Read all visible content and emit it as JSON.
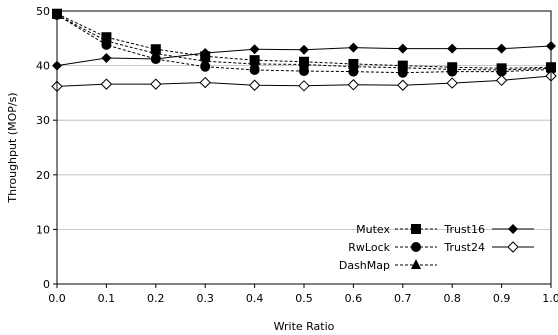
{
  "chart_data": {
    "type": "line",
    "xlabel": "Write Ratio",
    "ylabel": "Throughput (MOP/s)",
    "xlim": [
      0.0,
      1.0
    ],
    "ylim": [
      0,
      50
    ],
    "xticks": [
      "0.0",
      "0.1",
      "0.2",
      "0.3",
      "0.4",
      "0.5",
      "0.6",
      "0.7",
      "0.8",
      "0.9",
      "1.0"
    ],
    "yticks": [
      "0",
      "10",
      "20",
      "30",
      "40",
      "50"
    ],
    "x": [
      0.0,
      0.1,
      0.2,
      0.3,
      0.4,
      0.5,
      0.6,
      0.7,
      0.8,
      0.9,
      1.0
    ],
    "grid": "horizontal",
    "legend_position": "bottom-right",
    "series": [
      {
        "name": "Mutex",
        "marker": "square",
        "line": "dashed",
        "values": [
          49.5,
          45.2,
          43.0,
          41.7,
          41.0,
          40.7,
          40.3,
          40.0,
          39.7,
          39.5,
          39.7
        ]
      },
      {
        "name": "RwLock",
        "marker": "circle",
        "line": "dashed",
        "values": [
          49.3,
          43.8,
          41.2,
          39.8,
          39.2,
          39.0,
          38.9,
          38.7,
          38.9,
          38.9,
          39.3
        ]
      },
      {
        "name": "DashMap",
        "marker": "triangle",
        "line": "dashed",
        "values": [
          49.3,
          44.5,
          42.2,
          40.8,
          40.3,
          40.2,
          39.8,
          39.6,
          39.3,
          39.2,
          39.5
        ]
      },
      {
        "name": "Trust16",
        "marker": "diamond",
        "line": "solid",
        "values": [
          40.0,
          41.4,
          41.2,
          42.3,
          43.0,
          42.9,
          43.3,
          43.1,
          43.1,
          43.1,
          43.6
        ]
      },
      {
        "name": "Trust24",
        "marker": "diamond-open",
        "line": "solid",
        "values": [
          36.2,
          36.6,
          36.6,
          36.9,
          36.4,
          36.3,
          36.5,
          36.4,
          36.8,
          37.3,
          38.1
        ]
      }
    ]
  }
}
